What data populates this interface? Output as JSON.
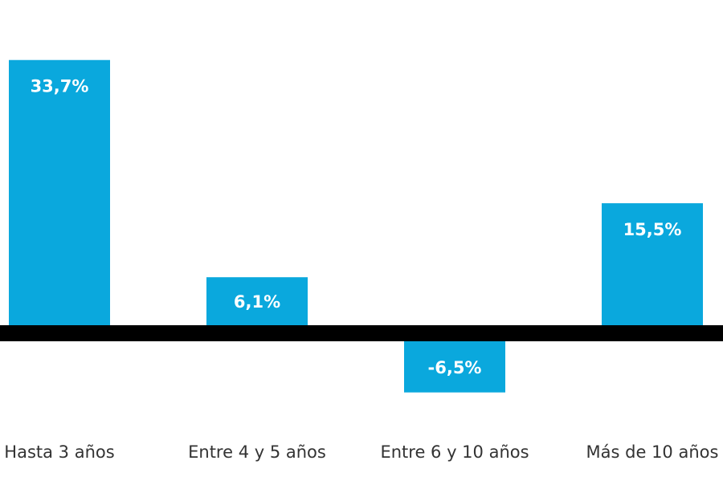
{
  "chart_data": {
    "type": "bar",
    "categories": [
      "Hasta 3 años",
      "Entre 4 y 5 años",
      "Entre 6 y 10 años",
      "Más de 10 años"
    ],
    "values": [
      33.7,
      6.1,
      -6.5,
      15.5
    ],
    "value_labels": [
      "33,7%",
      "6,1%",
      "-6,5%",
      "15,5%"
    ],
    "ylim": [
      -8,
      35
    ],
    "grid": false,
    "legend": "none",
    "colors": {
      "bar": "#0aa8dd",
      "axis": "#000000",
      "label": "#ffffff",
      "category": "#333333"
    }
  }
}
